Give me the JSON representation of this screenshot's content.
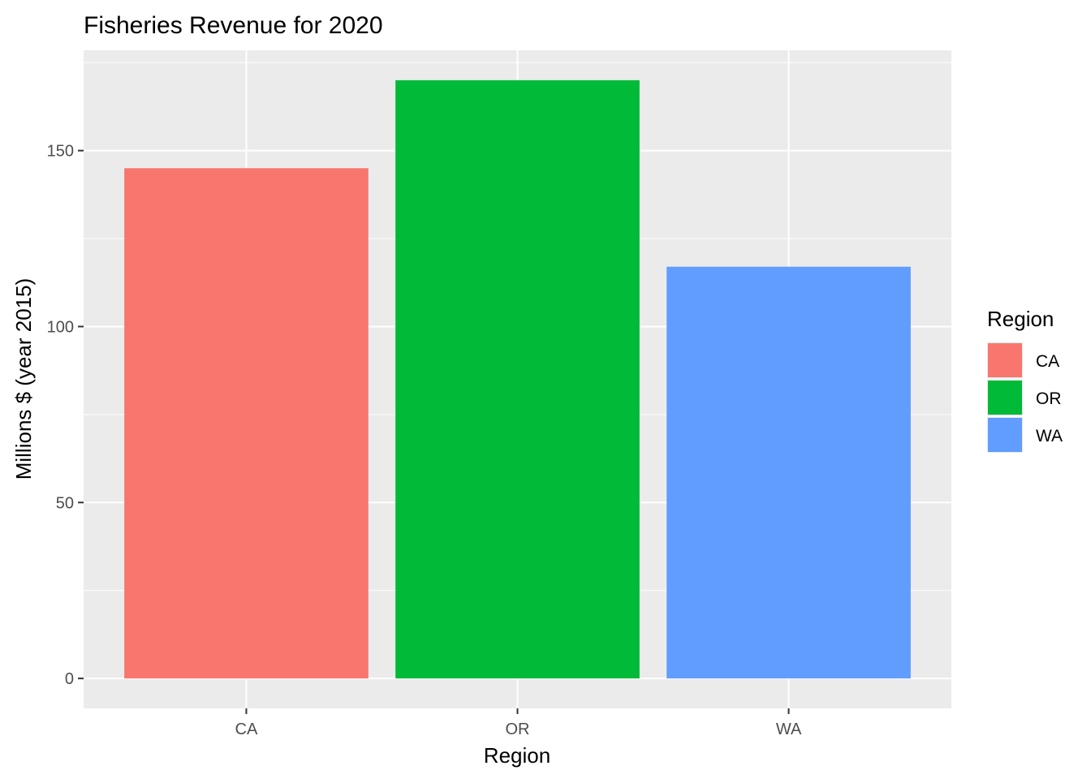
{
  "chart_data": {
    "type": "bar",
    "title": "Fisheries Revenue for 2020",
    "xlabel": "Region",
    "ylabel": "Millions $ (year 2015)",
    "categories": [
      "CA",
      "OR",
      "WA"
    ],
    "values": [
      145,
      170,
      117
    ],
    "colors": [
      "#F8766D",
      "#00BA38",
      "#619CFF"
    ],
    "ylim": [
      -8.5,
      178.5
    ],
    "yticks": [
      0,
      50,
      100,
      150
    ],
    "yticks_labels": [
      "0",
      "50",
      "100",
      "150"
    ],
    "grid": true,
    "panel_background": "#EBEBEB",
    "legend": {
      "title": "Region",
      "placement": "right",
      "entries": [
        "CA",
        "OR",
        "WA"
      ]
    }
  }
}
